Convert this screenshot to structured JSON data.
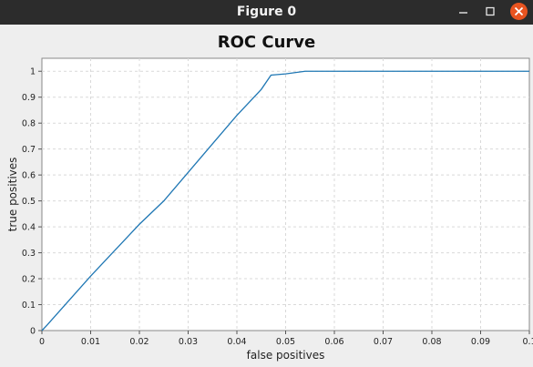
{
  "window": {
    "title": "Figure 0",
    "controls": {
      "minimize_icon": "minimize-icon",
      "maximize_icon": "maximize-icon",
      "close_icon": "close-icon",
      "close_color": "#e95420"
    }
  },
  "chart_data": {
    "type": "line",
    "title": "ROC Curve",
    "xlabel": "false positives",
    "ylabel": "true positives",
    "xlim": [
      0,
      0.1
    ],
    "ylim": [
      0,
      1.05
    ],
    "x_ticks": [
      "0",
      "0.01",
      "0.02",
      "0.03",
      "0.04",
      "0.05",
      "0.06",
      "0.07",
      "0.08",
      "0.09",
      "0.1"
    ],
    "y_ticks": [
      "0",
      "0.1",
      "0.2",
      "0.3",
      "0.4",
      "0.5",
      "0.6",
      "0.7",
      "0.8",
      "0.9",
      "1"
    ],
    "grid": true,
    "series": [
      {
        "color": "#1f77b4",
        "x": [
          0,
          0.001,
          0.01,
          0.02,
          0.025,
          0.03,
          0.035,
          0.04,
          0.045,
          0.047,
          0.05,
          0.054,
          0.06,
          0.07,
          0.08,
          0.09,
          0.1
        ],
        "y": [
          0,
          0.02,
          0.21,
          0.41,
          0.5,
          0.61,
          0.72,
          0.83,
          0.93,
          0.985,
          0.99,
          1.0,
          1.0,
          1.0,
          1.0,
          1.0,
          1.0
        ]
      }
    ]
  }
}
